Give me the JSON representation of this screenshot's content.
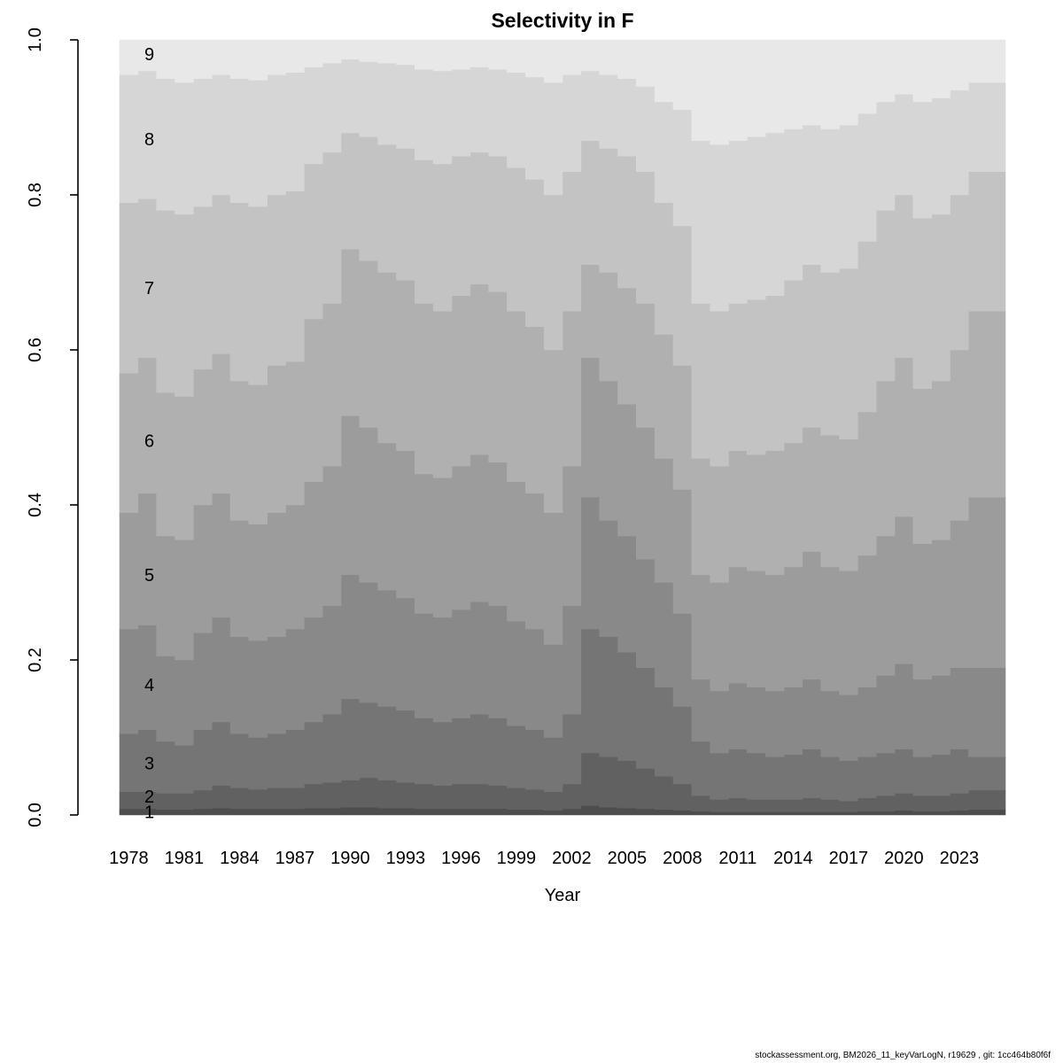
{
  "title": "Selectivity in F",
  "xlabel": "Year",
  "footer": "stockassessment.org, BM2026_11_keyVarLogN, r19629 , git: 1cc464b80f6f",
  "y_axis": {
    "tick_labels": [
      "0.0",
      "0.2",
      "0.4",
      "0.6",
      "0.8",
      "1.0"
    ],
    "tick_values": [
      0,
      0.2,
      0.4,
      0.6,
      0.8,
      1.0
    ]
  },
  "x_axis": {
    "tick_years": [
      1978,
      1981,
      1984,
      1987,
      1990,
      1993,
      1996,
      1999,
      2002,
      2005,
      2008,
      2011,
      2014,
      2017,
      2020,
      2023
    ]
  },
  "chart_data": {
    "type": "area",
    "stacked": true,
    "title": "Selectivity in F",
    "xlabel": "Year",
    "ylabel": "",
    "ylim": [
      0,
      1
    ],
    "xlim": [
      1978,
      2026
    ],
    "grid": false,
    "legend_position": "in-plot-band-labels",
    "note": "Stacked proportion-at-age plot; arrays below are cumulative upper boundaries of ages 1-8; age 9 band tops out at 1.0 for every year.",
    "years": [
      1978,
      1979,
      1980,
      1981,
      1982,
      1983,
      1984,
      1985,
      1986,
      1987,
      1988,
      1989,
      1990,
      1991,
      1992,
      1993,
      1994,
      1995,
      1996,
      1997,
      1998,
      1999,
      2000,
      2001,
      2002,
      2003,
      2004,
      2005,
      2006,
      2007,
      2008,
      2009,
      2010,
      2011,
      2012,
      2013,
      2014,
      2015,
      2016,
      2017,
      2018,
      2019,
      2020,
      2021,
      2022,
      2023,
      2024,
      2025
    ],
    "ages": [
      "1",
      "2",
      "3",
      "4",
      "5",
      "6",
      "7",
      "8",
      "9"
    ],
    "colors": [
      "#4d4d4d",
      "#616161",
      "#757575",
      "#898989",
      "#9c9c9c",
      "#b0b0b0",
      "#c3c3c3",
      "#d6d6d6",
      "#e8e8e8"
    ],
    "cumulative_upper": [
      [
        0.008,
        0.008,
        0.007,
        0.007,
        0.008,
        0.009,
        0.008,
        0.008,
        0.008,
        0.008,
        0.009,
        0.009,
        0.01,
        0.01,
        0.009,
        0.009,
        0.008,
        0.008,
        0.008,
        0.008,
        0.008,
        0.007,
        0.007,
        0.006,
        0.008,
        0.012,
        0.01,
        0.009,
        0.008,
        0.007,
        0.006,
        0.005,
        0.004,
        0.004,
        0.004,
        0.004,
        0.004,
        0.004,
        0.004,
        0.004,
        0.005,
        0.005,
        0.006,
        0.005,
        0.005,
        0.006,
        0.007,
        0.007
      ],
      [
        0.03,
        0.03,
        0.028,
        0.028,
        0.032,
        0.038,
        0.035,
        0.033,
        0.035,
        0.035,
        0.04,
        0.042,
        0.045,
        0.048,
        0.045,
        0.042,
        0.04,
        0.038,
        0.04,
        0.04,
        0.038,
        0.035,
        0.033,
        0.03,
        0.04,
        0.08,
        0.075,
        0.07,
        0.06,
        0.05,
        0.04,
        0.025,
        0.02,
        0.022,
        0.02,
        0.02,
        0.02,
        0.022,
        0.02,
        0.018,
        0.022,
        0.025,
        0.028,
        0.025,
        0.025,
        0.028,
        0.032,
        0.032
      ],
      [
        0.105,
        0.11,
        0.095,
        0.09,
        0.11,
        0.12,
        0.105,
        0.1,
        0.105,
        0.11,
        0.12,
        0.13,
        0.15,
        0.145,
        0.14,
        0.135,
        0.125,
        0.12,
        0.125,
        0.13,
        0.125,
        0.115,
        0.11,
        0.1,
        0.13,
        0.24,
        0.23,
        0.21,
        0.19,
        0.165,
        0.14,
        0.095,
        0.08,
        0.085,
        0.08,
        0.075,
        0.078,
        0.085,
        0.075,
        0.07,
        0.075,
        0.08,
        0.085,
        0.075,
        0.078,
        0.085,
        0.075,
        0.075
      ],
      [
        0.24,
        0.245,
        0.205,
        0.2,
        0.235,
        0.255,
        0.23,
        0.225,
        0.23,
        0.24,
        0.255,
        0.27,
        0.31,
        0.3,
        0.29,
        0.28,
        0.26,
        0.255,
        0.265,
        0.275,
        0.27,
        0.25,
        0.24,
        0.22,
        0.27,
        0.41,
        0.38,
        0.36,
        0.33,
        0.3,
        0.26,
        0.175,
        0.16,
        0.17,
        0.165,
        0.16,
        0.165,
        0.175,
        0.16,
        0.155,
        0.165,
        0.18,
        0.195,
        0.175,
        0.18,
        0.19,
        0.19,
        0.19
      ],
      [
        0.39,
        0.415,
        0.36,
        0.355,
        0.4,
        0.415,
        0.38,
        0.375,
        0.39,
        0.4,
        0.43,
        0.45,
        0.515,
        0.5,
        0.48,
        0.47,
        0.44,
        0.435,
        0.45,
        0.465,
        0.455,
        0.43,
        0.415,
        0.39,
        0.45,
        0.59,
        0.56,
        0.53,
        0.5,
        0.46,
        0.42,
        0.31,
        0.3,
        0.32,
        0.315,
        0.31,
        0.32,
        0.34,
        0.32,
        0.315,
        0.335,
        0.36,
        0.385,
        0.35,
        0.355,
        0.38,
        0.41,
        0.41
      ],
      [
        0.57,
        0.59,
        0.545,
        0.54,
        0.575,
        0.595,
        0.56,
        0.555,
        0.58,
        0.585,
        0.64,
        0.66,
        0.73,
        0.715,
        0.7,
        0.69,
        0.66,
        0.65,
        0.67,
        0.685,
        0.675,
        0.65,
        0.63,
        0.6,
        0.65,
        0.71,
        0.7,
        0.68,
        0.66,
        0.62,
        0.58,
        0.46,
        0.45,
        0.47,
        0.465,
        0.47,
        0.48,
        0.5,
        0.49,
        0.485,
        0.52,
        0.56,
        0.59,
        0.55,
        0.56,
        0.6,
        0.65,
        0.65
      ],
      [
        0.79,
        0.795,
        0.78,
        0.775,
        0.785,
        0.8,
        0.79,
        0.785,
        0.8,
        0.805,
        0.84,
        0.855,
        0.88,
        0.875,
        0.865,
        0.86,
        0.845,
        0.84,
        0.85,
        0.855,
        0.85,
        0.835,
        0.82,
        0.8,
        0.83,
        0.87,
        0.86,
        0.85,
        0.83,
        0.79,
        0.76,
        0.66,
        0.65,
        0.66,
        0.665,
        0.67,
        0.69,
        0.71,
        0.7,
        0.705,
        0.74,
        0.78,
        0.8,
        0.77,
        0.775,
        0.8,
        0.83,
        0.83
      ],
      [
        0.955,
        0.96,
        0.95,
        0.945,
        0.95,
        0.955,
        0.95,
        0.948,
        0.955,
        0.958,
        0.965,
        0.97,
        0.975,
        0.972,
        0.97,
        0.968,
        0.962,
        0.96,
        0.962,
        0.965,
        0.962,
        0.958,
        0.952,
        0.945,
        0.955,
        0.96,
        0.955,
        0.95,
        0.94,
        0.92,
        0.91,
        0.87,
        0.865,
        0.87,
        0.875,
        0.88,
        0.885,
        0.89,
        0.885,
        0.89,
        0.905,
        0.92,
        0.93,
        0.92,
        0.925,
        0.935,
        0.945,
        0.945
      ]
    ],
    "age_label_positions": {
      "1": 0.004,
      "2": 0.024,
      "3": 0.067,
      "4": 0.168,
      "5": 0.31,
      "6": 0.483,
      "7": 0.68,
      "8": 0.872,
      "9": 0.982
    }
  }
}
